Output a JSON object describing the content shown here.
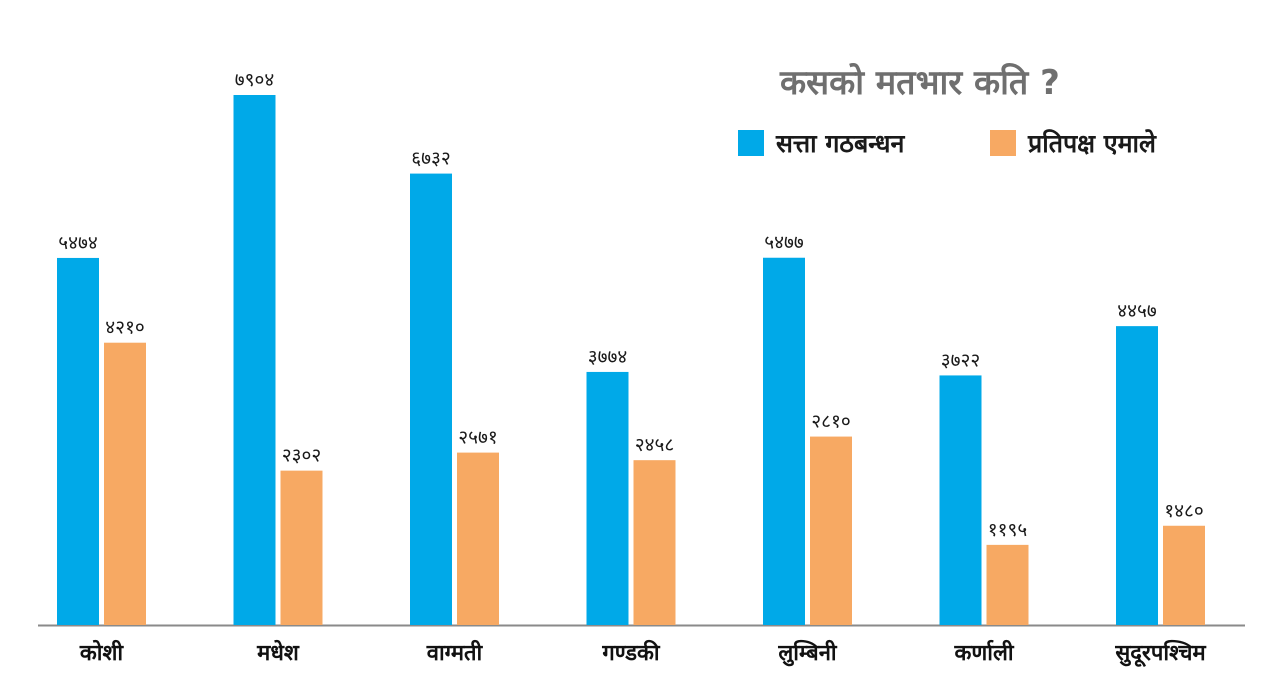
{
  "chart_data": {
    "type": "bar",
    "title": "कसको मतभार कति ?",
    "categories": [
      "कोशी",
      "मधेश",
      "वाग्मती",
      "गण्डकी",
      "लुम्बिनी",
      "कर्णाली",
      "सुदूरपश्चिम"
    ],
    "series": [
      {
        "name": "सत्ता गठबन्धन",
        "color": "#00a9e8",
        "values": [
          5474,
          7904,
          6732,
          3774,
          5477,
          3722,
          4457
        ],
        "labels": [
          "५४७४",
          "७९०४",
          "६७३२",
          "३७७४",
          "५४७७",
          "३७२२",
          "४४५७"
        ]
      },
      {
        "name": "प्रतिपक्ष एमाले",
        "color": "#f7a963",
        "values": [
          4210,
          2302,
          2571,
          2458,
          2810,
          1195,
          1480
        ],
        "labels": [
          "४२१०",
          "२३०२",
          "२५७१",
          "२४५८",
          "२८१०",
          "११९५",
          "१४८०"
        ]
      }
    ],
    "ylim": [
      0,
      8000
    ],
    "grid": false,
    "legend_position": "top-right",
    "xlabel": "",
    "ylabel": ""
  }
}
